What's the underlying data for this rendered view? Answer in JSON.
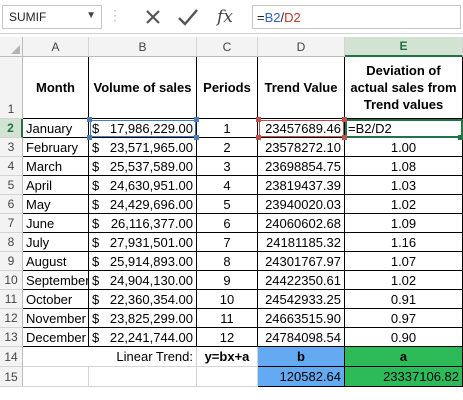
{
  "formula_bar": {
    "name_box": "SUMIF",
    "cancel_icon": "x-icon",
    "enter_icon": "check-icon",
    "fx_label": "fx",
    "formula_parts": [
      "=",
      "B2",
      "/",
      "D2"
    ]
  },
  "columns": [
    "A",
    "B",
    "C",
    "D",
    "E"
  ],
  "rows": [
    "1",
    "2",
    "3",
    "4",
    "5",
    "6",
    "7",
    "8",
    "9",
    "10",
    "11",
    "12",
    "13",
    "14",
    "15"
  ],
  "headers": {
    "month": "Month",
    "volume": "Volume of sales",
    "periods": "Periods",
    "trend": "Trend Value",
    "deviation": "Deviation of actual sales from Trend values"
  },
  "data": [
    {
      "month": "January",
      "cur": "$",
      "volume": "17,986,229.00",
      "period": "1",
      "trend": "23457689.46",
      "dev": "=B2/D2"
    },
    {
      "month": "February",
      "cur": "$",
      "volume": "23,571,965.00",
      "period": "2",
      "trend": "23578272.10",
      "dev": "1.00"
    },
    {
      "month": "March",
      "cur": "$",
      "volume": "25,537,589.00",
      "period": "3",
      "trend": "23698854.75",
      "dev": "1.08"
    },
    {
      "month": "April",
      "cur": "$",
      "volume": "24,630,951.00",
      "period": "4",
      "trend": "23819437.39",
      "dev": "1.03"
    },
    {
      "month": "May",
      "cur": "$",
      "volume": "24,429,696.00",
      "period": "5",
      "trend": "23940020.03",
      "dev": "1.02"
    },
    {
      "month": "June",
      "cur": "$",
      "volume": "26,116,377.00",
      "period": "6",
      "trend": "24060602.68",
      "dev": "1.09"
    },
    {
      "month": "July",
      "cur": "$",
      "volume": "27,931,501.00",
      "period": "7",
      "trend": "24181185.32",
      "dev": "1.16"
    },
    {
      "month": "August",
      "cur": "$",
      "volume": "25,914,893.00",
      "period": "8",
      "trend": "24301767.97",
      "dev": "1.07"
    },
    {
      "month": "September",
      "cur": "$",
      "volume": "24,904,130.00",
      "period": "9",
      "trend": "24422350.61",
      "dev": "1.02"
    },
    {
      "month": "October",
      "cur": "$",
      "volume": "22,360,354.00",
      "period": "10",
      "trend": "24542933.25",
      "dev": "0.91"
    },
    {
      "month": "November",
      "cur": "$",
      "volume": "23,825,299.00",
      "period": "11",
      "trend": "24663515.90",
      "dev": "0.97"
    },
    {
      "month": "December",
      "cur": "$",
      "volume": "22,241,744.00",
      "period": "12",
      "trend": "24784098.54",
      "dev": "0.90"
    }
  ],
  "trend_row": {
    "label": "Linear Trend:",
    "equation": "y=bx+a",
    "b_label": "b",
    "a_label": "a",
    "b_value": "120582.64",
    "a_value": "23337106.82"
  },
  "colors": {
    "accent": "#217346",
    "ref_blue": "#4a7ebb",
    "ref_red": "#c0504d",
    "fill_b": "#63aaf2",
    "fill_a": "#2dbb5a"
  }
}
